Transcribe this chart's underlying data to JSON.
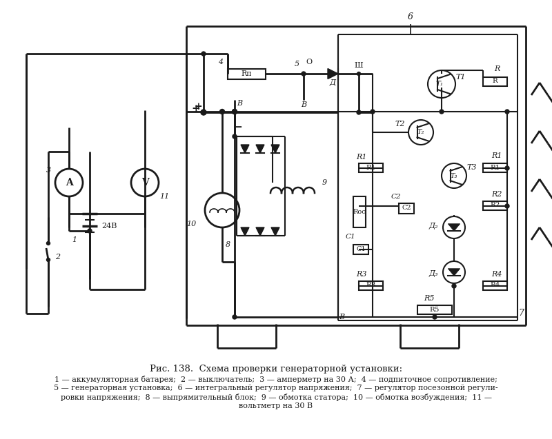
{
  "title": "Рис. 138.  Схема проверки генераторной установки:",
  "cap1": "1 — аккумуляторная батарея;  2 — выключатель;  3 — амперметр на 30 А;  4 — подпиточное сопротивление;",
  "cap2": "5 — генераторная установка;  6 — интегральный регулятор напряжения;  7 — регулятор посезонной регули-",
  "cap3": "ровки напряжения;  8 — выпрямительный блок;  9 — обмотка статора;  10 — обмотка возбуждения;  11 —",
  "cap4": "вольтметр на 30 В",
  "bg": "#ffffff",
  "lc": "#1a1a1a"
}
